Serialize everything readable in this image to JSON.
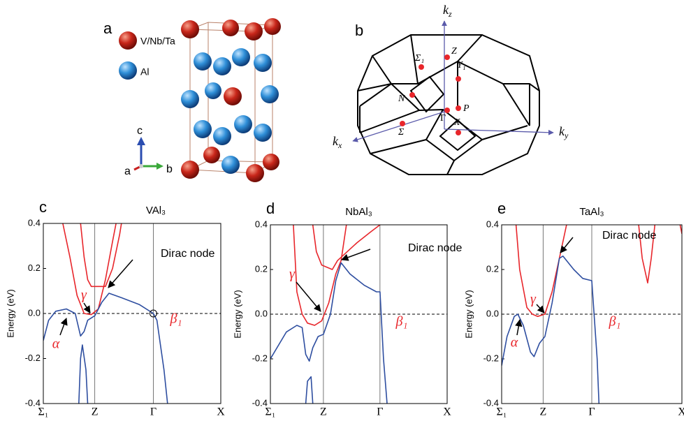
{
  "panel_a": {
    "letter": "a",
    "legend": [
      "V/Nb/Ta",
      "Al"
    ],
    "axes": [
      "c",
      "a",
      "b"
    ]
  },
  "panel_b": {
    "letter": "b",
    "points": [
      "Z",
      "Σ₁",
      "Y₁",
      "N",
      "P",
      "Γ",
      "X",
      "Σ"
    ],
    "axes": [
      {
        "k": "k",
        "sub": "z"
      },
      {
        "k": "k",
        "sub": "y"
      },
      {
        "k": "k",
        "sub": "x"
      }
    ]
  },
  "chart_data": [
    {
      "type": "line",
      "letter": "c",
      "title": "VAl₃",
      "ylabel": "Energy (eV)",
      "xlim": [
        0,
        1
      ],
      "ylim": [
        -0.4,
        0.4
      ],
      "xticks": [
        {
          "value": 0,
          "label": "Σ₁"
        },
        {
          "value": 0.29,
          "label": "Z"
        },
        {
          "value": 0.62,
          "label": "Γ"
        },
        {
          "value": 1,
          "label": "X"
        }
      ],
      "yticks": [
        0.4,
        0.2,
        {
          "value": 0,
          "label": "0.0"
        },
        -0.2,
        -0.4
      ],
      "series": [
        {
          "color": "#e8262b",
          "x": [
            0.11,
            0.15,
            0.19,
            0.23,
            0.27,
            0.31,
            0.35,
            0.39,
            0.41
          ],
          "values": [
            0.4,
            0.25,
            0.08,
            0.0,
            -0.005,
            0.02,
            0.15,
            0.32,
            0.4
          ]
        },
        {
          "color": "#e8262b",
          "x": [
            0.21,
            0.23,
            0.25,
            0.27,
            0.35,
            0.39,
            0.43,
            0.44
          ],
          "values": [
            0.4,
            0.25,
            0.15,
            0.12,
            0.12,
            0.2,
            0.35,
            0.4
          ]
        },
        {
          "color": "#2e4ea0",
          "x": [
            0,
            0.03,
            0.07,
            0.13,
            0.18,
            0.21,
            0.23,
            0.25,
            0.29,
            0.33,
            0.37,
            0.44,
            0.54,
            0.62,
            0.64,
            0.68,
            0.7
          ],
          "values": [
            -0.12,
            -0.03,
            0.01,
            0.02,
            0.0,
            -0.1,
            -0.08,
            -0.03,
            -0.01,
            0.05,
            0.09,
            0.07,
            0.04,
            0.0,
            -0.03,
            -0.25,
            -0.4
          ]
        },
        {
          "color": "#2e4ea0",
          "x": [
            0.2,
            0.21,
            0.22,
            0.24,
            0.25
          ],
          "values": [
            -0.4,
            -0.2,
            -0.14,
            -0.25,
            -0.4
          ]
        }
      ],
      "annotations": [
        {
          "text": "γ",
          "color": "#e8262b"
        },
        {
          "text": "α",
          "color": "#e8262b"
        },
        {
          "text": "Dirac node",
          "color": "#000000"
        },
        {
          "text": "β₁",
          "color": "#e8262b"
        }
      ]
    },
    {
      "type": "line",
      "letter": "d",
      "title": "NbAl₃",
      "ylabel": "Energy (eV)",
      "xlim": [
        0,
        1
      ],
      "ylim": [
        -0.4,
        0.4
      ],
      "xticks": [
        {
          "value": 0,
          "label": "Σ₁"
        },
        {
          "value": 0.3,
          "label": "Z"
        },
        {
          "value": 0.62,
          "label": "Γ"
        },
        {
          "value": 1,
          "label": "X"
        }
      ],
      "yticks": [
        0.4,
        0.2,
        {
          "value": 0,
          "label": "0.0"
        },
        -0.2,
        -0.4
      ],
      "series": [
        {
          "color": "#e8262b",
          "x": [
            0.13,
            0.15,
            0.18,
            0.21,
            0.25,
            0.29,
            0.33,
            0.37,
            0.4,
            0.43
          ],
          "values": [
            0.4,
            0.1,
            0.0,
            -0.04,
            -0.05,
            -0.03,
            0.05,
            0.18,
            0.24,
            0.4
          ]
        },
        {
          "color": "#e8262b",
          "x": [
            0.24,
            0.26,
            0.29,
            0.35,
            0.38,
            0.49,
            0.57,
            0.62
          ],
          "values": [
            0.4,
            0.28,
            0.22,
            0.2,
            0.24,
            0.32,
            0.37,
            0.4
          ]
        },
        {
          "color": "#2e4ea0",
          "x": [
            0,
            0.09,
            0.15,
            0.18,
            0.2,
            0.22,
            0.24,
            0.27,
            0.3,
            0.34,
            0.37,
            0.4,
            0.45,
            0.53,
            0.6,
            0.62,
            0.64,
            0.66
          ],
          "values": [
            -0.2,
            -0.08,
            -0.05,
            -0.06,
            -0.18,
            -0.21,
            -0.15,
            -0.1,
            -0.09,
            0.0,
            0.15,
            0.23,
            0.18,
            0.13,
            0.1,
            0.1,
            -0.2,
            -0.4
          ]
        },
        {
          "color": "#2e4ea0",
          "x": [
            0.2,
            0.21,
            0.23,
            0.24
          ],
          "values": [
            -0.4,
            -0.3,
            -0.28,
            -0.4
          ]
        }
      ],
      "annotations": [
        {
          "text": "γ",
          "color": "#e8262b"
        },
        {
          "text": "Dirac node",
          "color": "#000000"
        },
        {
          "text": "β₁",
          "color": "#e8262b"
        }
      ]
    },
    {
      "type": "line",
      "letter": "e",
      "title": "TaAl₃",
      "ylabel": "Energy (eV)",
      "xlim": [
        0,
        1
      ],
      "ylim": [
        -0.4,
        0.4
      ],
      "xticks": [
        {
          "value": 0,
          "label": "Σ₁"
        },
        {
          "value": 0.23,
          "label": "Z"
        },
        {
          "value": 0.5,
          "label": "Γ"
        },
        {
          "value": 1,
          "label": "X"
        }
      ],
      "yticks": [
        0.4,
        0.2,
        {
          "value": 0,
          "label": "0.0"
        },
        -0.2,
        -0.4
      ],
      "series": [
        {
          "color": "#e8262b",
          "x": [
            0.08,
            0.1,
            0.14,
            0.17,
            0.2,
            0.24,
            0.28,
            0.32,
            0.36
          ],
          "values": [
            0.4,
            0.2,
            0.03,
            0.0,
            -0.01,
            0.0,
            0.1,
            0.25,
            0.4
          ]
        },
        {
          "color": "#e8262b",
          "x": [
            0.76,
            0.78,
            0.81,
            0.83,
            0.85
          ],
          "values": [
            0.4,
            0.25,
            0.14,
            0.25,
            0.4
          ]
        },
        {
          "color": "#e8262b",
          "x": [
            0.99,
            1.0
          ],
          "values": [
            0.4,
            0.36
          ]
        },
        {
          "color": "#2e4ea0",
          "x": [
            0,
            0.03,
            0.07,
            0.09,
            0.12,
            0.16,
            0.18,
            0.21,
            0.24,
            0.28,
            0.32,
            0.34,
            0.4,
            0.45,
            0.5,
            0.53,
            0.54
          ],
          "values": [
            -0.23,
            -0.1,
            -0.01,
            0.0,
            -0.05,
            -0.17,
            -0.19,
            -0.13,
            -0.1,
            0.05,
            0.25,
            0.26,
            0.2,
            0.16,
            0.15,
            -0.2,
            -0.4
          ]
        }
      ],
      "annotations": [
        {
          "text": "γ",
          "color": "#e8262b"
        },
        {
          "text": "α",
          "color": "#e8262b"
        },
        {
          "text": "Dirac node",
          "color": "#000000"
        },
        {
          "text": "β₁",
          "color": "#e8262b"
        }
      ]
    }
  ]
}
